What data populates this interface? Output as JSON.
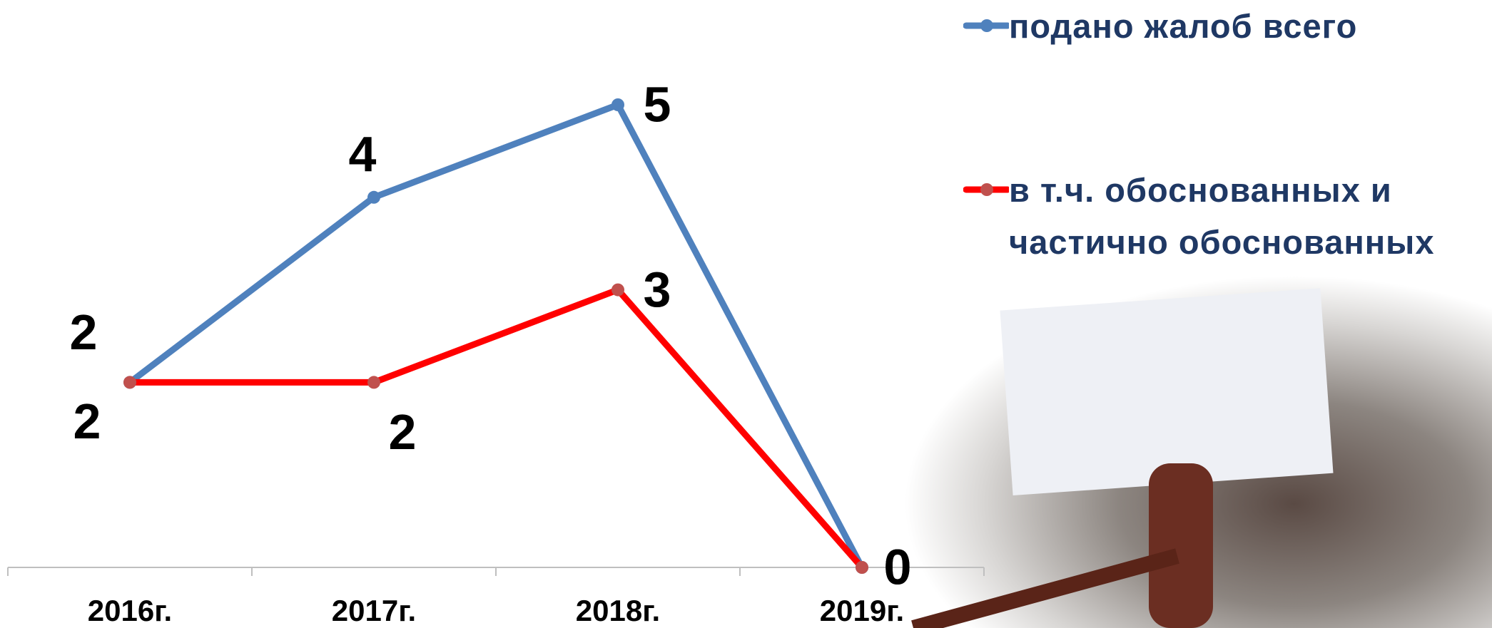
{
  "chart_data": {
    "type": "line",
    "categories": [
      "2016г.",
      "2017г.",
      "2018г.",
      "2019г."
    ],
    "series": [
      {
        "name": "подано жалоб всего",
        "color": "#4f81bd",
        "values": [
          2,
          4,
          5,
          0
        ]
      },
      {
        "name": "в т.ч. обоснованных и частично обоснованных",
        "color": "#ff0000",
        "values": [
          2,
          2,
          3,
          0
        ]
      }
    ],
    "legend": "top-right"
  }
}
